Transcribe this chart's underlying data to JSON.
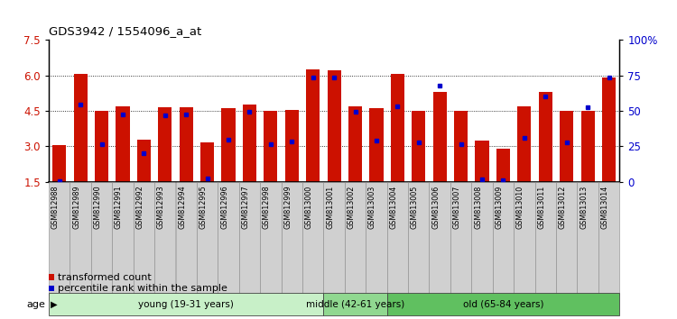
{
  "title": "GDS3942 / 1554096_a_at",
  "samples": [
    "GSM812988",
    "GSM812989",
    "GSM812990",
    "GSM812991",
    "GSM812992",
    "GSM812993",
    "GSM812994",
    "GSM812995",
    "GSM812996",
    "GSM812997",
    "GSM812998",
    "GSM812999",
    "GSM813000",
    "GSM813001",
    "GSM813002",
    "GSM813003",
    "GSM813004",
    "GSM813005",
    "GSM813006",
    "GSM813007",
    "GSM813008",
    "GSM813009",
    "GSM813010",
    "GSM813011",
    "GSM813012",
    "GSM813013",
    "GSM813014"
  ],
  "red_values": [
    3.05,
    6.05,
    4.5,
    4.7,
    3.3,
    4.65,
    4.65,
    3.15,
    4.6,
    4.75,
    4.5,
    4.55,
    6.25,
    6.2,
    4.7,
    4.6,
    6.05,
    4.5,
    5.3,
    4.5,
    3.25,
    2.9,
    4.7,
    5.3,
    4.5,
    4.5,
    5.9
  ],
  "blue_values": [
    1.52,
    4.75,
    3.1,
    4.35,
    2.7,
    4.3,
    4.35,
    1.65,
    3.3,
    4.45,
    3.1,
    3.2,
    5.9,
    5.9,
    4.45,
    3.25,
    4.7,
    3.15,
    5.55,
    3.1,
    1.6,
    1.55,
    3.35,
    5.1,
    3.15,
    4.65,
    5.9
  ],
  "y_min": 1.5,
  "y_max": 7.5,
  "y_ticks_left": [
    1.5,
    3.0,
    4.5,
    6.0,
    7.5
  ],
  "y_ticks_right_pct": [
    0,
    25,
    50,
    75,
    100
  ],
  "y_ticks_right_labels": [
    "0",
    "25",
    "50",
    "75",
    "100%"
  ],
  "groups": [
    {
      "label": "young (19-31 years)",
      "start": 0,
      "end": 13,
      "color": "#c8f0c8"
    },
    {
      "label": "middle (42-61 years)",
      "start": 13,
      "end": 16,
      "color": "#90d890"
    },
    {
      "label": "old (65-84 years)",
      "start": 16,
      "end": 27,
      "color": "#60c060"
    }
  ],
  "bar_color": "#cc1100",
  "dot_color": "#0000cc",
  "bar_width": 0.65,
  "legend_red": "transformed count",
  "legend_blue": "percentile rank within the sample",
  "bar_base": 1.5,
  "grid_dotted_at": [
    3.0,
    4.5,
    6.0
  ],
  "x_tick_bg": "#d0d0d0",
  "tick_color_left": "#cc1100",
  "tick_color_right": "#0000cc"
}
